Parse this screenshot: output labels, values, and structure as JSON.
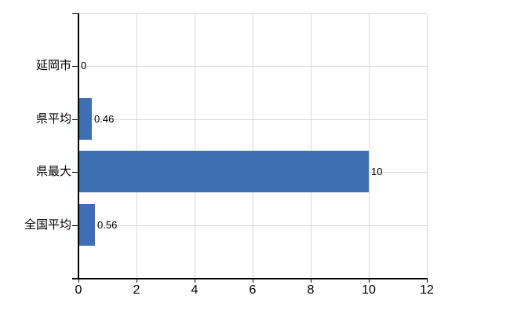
{
  "chart_data": {
    "type": "bar",
    "orientation": "horizontal",
    "title": "",
    "categories": [
      "延岡市",
      "県平均",
      "県最大",
      "全国平均"
    ],
    "values": [
      0,
      0.46,
      10,
      0.56
    ],
    "value_labels": [
      "0",
      "0.46",
      "10",
      "0.56"
    ],
    "xlim": [
      0,
      12
    ],
    "x_ticks": [
      0,
      2,
      4,
      6,
      8,
      10,
      12
    ],
    "x_tick_labels": [
      "0",
      "2",
      "4",
      "6",
      "8",
      "10",
      "12"
    ],
    "grid": true,
    "legend": false,
    "colors": {
      "bar": "#3E6FB2",
      "grid": "#D9D9D9",
      "axis": "#000000",
      "text": "#000000",
      "background": "#FFFFFF"
    }
  }
}
